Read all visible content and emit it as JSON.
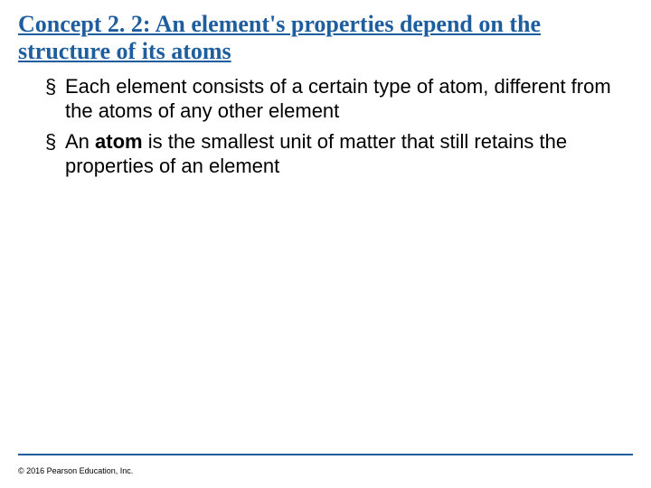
{
  "slide": {
    "title_color": "#1f5e9e",
    "title": "Concept 2. 2: An element's properties depend on the structure of its atoms",
    "bullets": [
      {
        "text_plain": "Each element consists of a certain type of atom, different from the atoms of any other element"
      },
      {
        "prefix": "An ",
        "bold": "atom",
        "suffix": " is the smallest unit of matter that still retains the properties of an element"
      }
    ],
    "footer_line_color": "#1f5e9e",
    "copyright": "© 2016 Pearson Education, Inc.",
    "body_fontsize": 22,
    "title_fontsize": 26
  }
}
